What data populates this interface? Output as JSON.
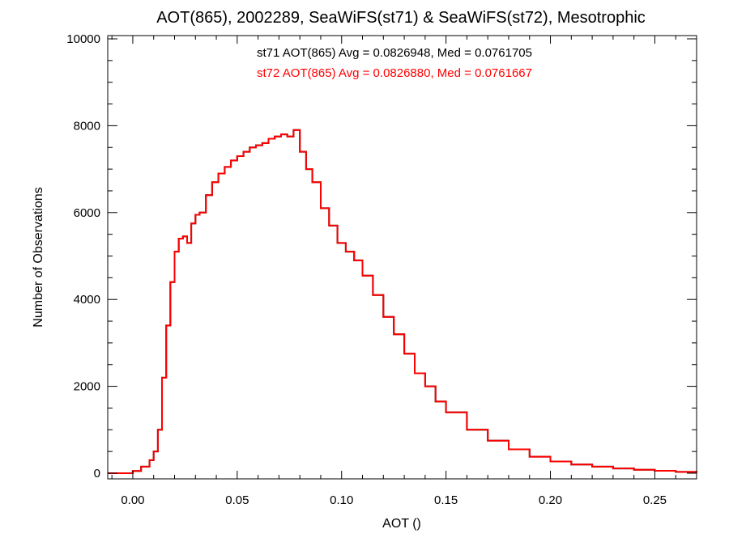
{
  "chart_data": {
    "type": "line",
    "title": "AOT(865), 2002289, SeaWiFS(st71) & SeaWiFS(st72), Mesotrophic",
    "xlabel": "AOT ()",
    "ylabel": "Number of Observations",
    "xlim": [
      -0.012,
      0.27
    ],
    "ylim": [
      0,
      10000
    ],
    "x_ticks": [
      "0.00",
      "0.05",
      "0.10",
      "0.15",
      "0.20",
      "0.25"
    ],
    "x_tick_values": [
      0.0,
      0.05,
      0.1,
      0.15,
      0.2,
      0.25
    ],
    "y_ticks": [
      "0",
      "2000",
      "4000",
      "6000",
      "8000",
      "10000"
    ],
    "y_tick_values": [
      0,
      2000,
      4000,
      6000,
      8000,
      10000
    ],
    "grid": false,
    "step_plot": true,
    "annotations": [
      {
        "text": "st71 AOT(865) Avg = 0.0826948, Med = 0.0761705",
        "color": "#000000"
      },
      {
        "text": "st72 AOT(865) Avg = 0.0826880, Med = 0.0761667",
        "color": "#ff0000"
      }
    ],
    "series": [
      {
        "name": "st71",
        "color": "#000000",
        "x": [
          -0.006,
          0.0,
          0.004,
          0.008,
          0.01,
          0.012,
          0.014,
          0.016,
          0.018,
          0.02,
          0.022,
          0.024,
          0.026,
          0.028,
          0.03,
          0.032,
          0.035,
          0.038,
          0.041,
          0.044,
          0.047,
          0.05,
          0.053,
          0.056,
          0.059,
          0.062,
          0.065,
          0.068,
          0.071,
          0.074,
          0.077,
          0.08,
          0.083,
          0.086,
          0.09,
          0.094,
          0.098,
          0.102,
          0.106,
          0.11,
          0.115,
          0.12,
          0.125,
          0.13,
          0.135,
          0.14,
          0.145,
          0.15,
          0.16,
          0.17,
          0.18,
          0.19,
          0.2,
          0.21,
          0.22,
          0.23,
          0.24,
          0.25,
          0.26,
          0.27
        ],
        "values": [
          0,
          50,
          150,
          300,
          500,
          1000,
          2200,
          3400,
          4400,
          5100,
          5400,
          5450,
          5300,
          5750,
          5950,
          6000,
          6400,
          6700,
          6900,
          7050,
          7200,
          7300,
          7400,
          7500,
          7550,
          7600,
          7700,
          7750,
          7800,
          7750,
          7900,
          7400,
          7000,
          6700,
          6100,
          5700,
          5300,
          5100,
          4900,
          4550,
          4100,
          3600,
          3200,
          2750,
          2300,
          2000,
          1650,
          1400,
          1000,
          750,
          550,
          380,
          270,
          200,
          150,
          110,
          80,
          55,
          30,
          15
        ]
      },
      {
        "name": "st72",
        "color": "#ff0000",
        "x": [
          -0.006,
          0.0,
          0.004,
          0.008,
          0.01,
          0.012,
          0.014,
          0.016,
          0.018,
          0.02,
          0.022,
          0.024,
          0.026,
          0.028,
          0.03,
          0.032,
          0.035,
          0.038,
          0.041,
          0.044,
          0.047,
          0.05,
          0.053,
          0.056,
          0.059,
          0.062,
          0.065,
          0.068,
          0.071,
          0.074,
          0.077,
          0.08,
          0.083,
          0.086,
          0.09,
          0.094,
          0.098,
          0.102,
          0.106,
          0.11,
          0.115,
          0.12,
          0.125,
          0.13,
          0.135,
          0.14,
          0.145,
          0.15,
          0.16,
          0.17,
          0.18,
          0.19,
          0.2,
          0.21,
          0.22,
          0.23,
          0.24,
          0.25,
          0.26,
          0.27
        ],
        "values": [
          0,
          50,
          150,
          300,
          500,
          1000,
          2200,
          3400,
          4400,
          5100,
          5400,
          5450,
          5300,
          5750,
          5950,
          6000,
          6400,
          6700,
          6900,
          7050,
          7200,
          7300,
          7400,
          7500,
          7550,
          7600,
          7700,
          7750,
          7800,
          7750,
          7900,
          7400,
          7000,
          6700,
          6100,
          5700,
          5300,
          5100,
          4900,
          4550,
          4100,
          3600,
          3200,
          2750,
          2300,
          2000,
          1650,
          1400,
          1000,
          750,
          550,
          380,
          270,
          200,
          150,
          110,
          80,
          55,
          30,
          15
        ]
      }
    ]
  }
}
